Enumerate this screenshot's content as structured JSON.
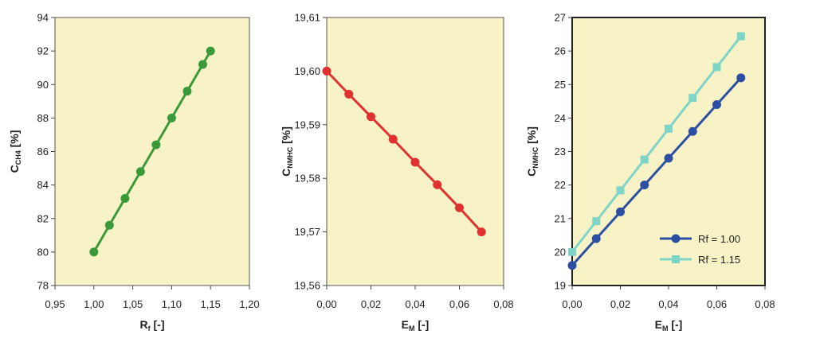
{
  "chart_data": [
    {
      "type": "line",
      "xlabel": {
        "main": "R",
        "sub": "f",
        "suffix": " [-]"
      },
      "ylabel": {
        "main": "C",
        "sub": "CH4",
        "suffix": " [%]"
      },
      "xlim": [
        0.95,
        1.2
      ],
      "ylim": [
        78,
        94
      ],
      "xticks": [
        "0,95",
        "1,00",
        "1,05",
        "1,10",
        "1,15",
        "1,20"
      ],
      "yticks": [
        "78",
        "80",
        "82",
        "84",
        "86",
        "88",
        "90",
        "92",
        "94"
      ],
      "series": [
        {
          "name": "CH4",
          "color": "#3a9a3a",
          "marker": "circle",
          "x": [
            1.0,
            1.02,
            1.04,
            1.06,
            1.08,
            1.1,
            1.12,
            1.14,
            1.15
          ],
          "y": [
            80.0,
            81.6,
            83.2,
            84.8,
            86.4,
            88.0,
            89.6,
            91.2,
            92.0
          ]
        }
      ]
    },
    {
      "type": "line",
      "xlabel": {
        "main": "E",
        "sub": "M",
        "suffix": " [-]"
      },
      "ylabel": {
        "main": "C",
        "sub": "NMHC",
        "suffix": " [%]"
      },
      "xlim": [
        0.0,
        0.08
      ],
      "ylim": [
        19.56,
        19.61
      ],
      "xticks": [
        "0,00",
        "0,02",
        "0,04",
        "0,06",
        "0,08"
      ],
      "yticks": [
        "19,56",
        "19,57",
        "19,58",
        "19,59",
        "19,60",
        "19,61"
      ],
      "series": [
        {
          "name": "NMHC",
          "color": "#e03030",
          "marker": "circle",
          "x": [
            0.0,
            0.01,
            0.02,
            0.03,
            0.04,
            0.05,
            0.06,
            0.07
          ],
          "y": [
            19.6,
            19.5957,
            19.5915,
            19.5873,
            19.583,
            19.5788,
            19.5745,
            19.57
          ]
        }
      ]
    },
    {
      "type": "line",
      "xlabel": {
        "main": "E",
        "sub": "M",
        "suffix": " [-]"
      },
      "ylabel": {
        "main": "C",
        "sub": "NMHC",
        "suffix": " [%]"
      },
      "xlim": [
        0.0,
        0.08
      ],
      "ylim": [
        19,
        27
      ],
      "xticks": [
        "0,00",
        "0,02",
        "0,04",
        "0,06",
        "0,08"
      ],
      "yticks": [
        "19",
        "20",
        "21",
        "22",
        "23",
        "24",
        "25",
        "26",
        "27"
      ],
      "legend": "bottom-right",
      "series": [
        {
          "name": "Rf = 1.00",
          "color": "#2d4fa3",
          "marker": "circle",
          "x": [
            0.0,
            0.01,
            0.02,
            0.03,
            0.04,
            0.05,
            0.06,
            0.07
          ],
          "y": [
            19.6,
            20.4,
            21.2,
            22.0,
            22.8,
            23.6,
            24.4,
            25.2
          ]
        },
        {
          "name": "Rf = 1.15",
          "color": "#7fd4c8",
          "marker": "square",
          "x": [
            0.0,
            0.01,
            0.02,
            0.03,
            0.04,
            0.05,
            0.06,
            0.07
          ],
          "y": [
            20.0,
            20.92,
            21.84,
            22.76,
            23.68,
            24.6,
            25.52,
            26.44
          ]
        }
      ]
    }
  ]
}
